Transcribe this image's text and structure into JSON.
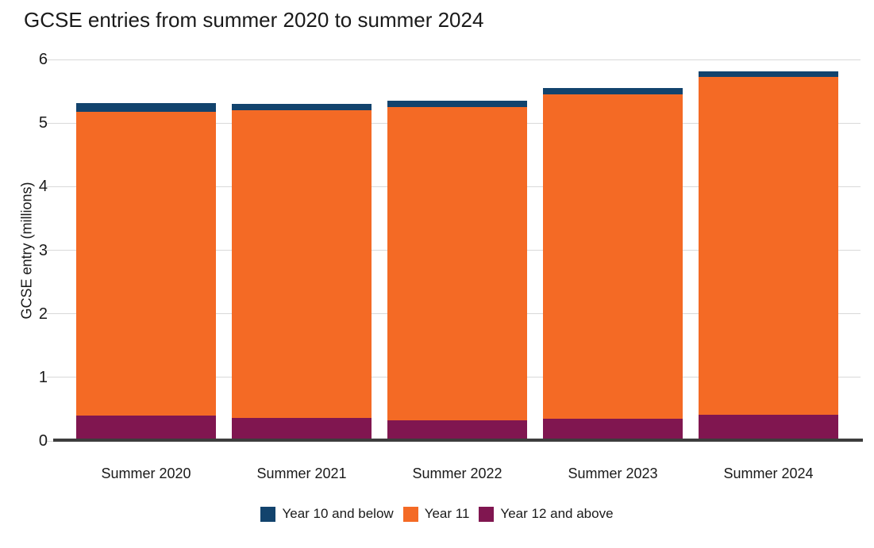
{
  "title": "GCSE entries from summer 2020 to summer 2024",
  "chart_data": {
    "type": "bar",
    "stacked": true,
    "title": "GCSE entries from summer 2020 to summer 2024",
    "xlabel": "",
    "ylabel": "GCSE entry (millions)",
    "ylim": [
      0,
      6
    ],
    "yticks": [
      0,
      1,
      2,
      3,
      4,
      5,
      6
    ],
    "grid": true,
    "legend_position": "bottom",
    "categories": [
      "Summer 2020",
      "Summer 2021",
      "Summer 2022",
      "Summer 2023",
      "Summer 2024"
    ],
    "series": [
      {
        "name": "Year 12 and above",
        "color": "#801650",
        "values": [
          0.4,
          0.36,
          0.32,
          0.35,
          0.41
        ]
      },
      {
        "name": "Year 11",
        "color": "#F46A25",
        "values": [
          4.78,
          4.84,
          4.93,
          5.1,
          5.31
        ]
      },
      {
        "name": "Year 10 and below",
        "color": "#12436D",
        "values": [
          0.13,
          0.1,
          0.1,
          0.1,
          0.09
        ]
      }
    ],
    "legend": [
      "Year 10 and below",
      "Year 11",
      "Year 12 and above"
    ]
  },
  "colors": {
    "background": "#FFFFFF",
    "gridline": "#D9D9D9",
    "axis": "#3D3D3D",
    "text": "#1A1A1A"
  }
}
